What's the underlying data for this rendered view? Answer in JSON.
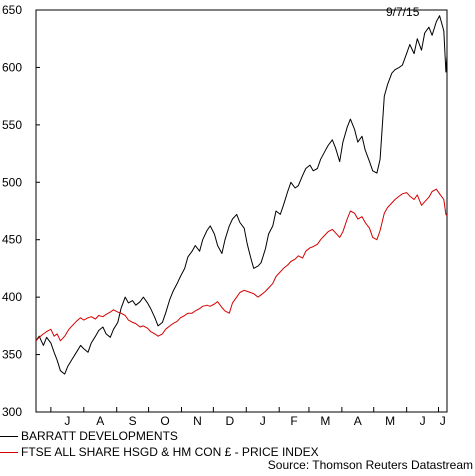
{
  "date_label": "9/7/15",
  "source": "Source: Thomson Reuters Datastream",
  "colors": {
    "series_1": "#000000",
    "series_2": "#d40000"
  },
  "chart_data": {
    "type": "line",
    "title": "",
    "xlabel": "",
    "ylabel": "",
    "ylim": [
      300,
      650
    ],
    "y_ticks": [
      300,
      350,
      400,
      450,
      500,
      550,
      600,
      650
    ],
    "x_ticks": [
      "J",
      "A",
      "S",
      "O",
      "N",
      "D",
      "J",
      "F",
      "M",
      "A",
      "M",
      "J",
      "J"
    ],
    "x_range": [
      "2014-06-17",
      "2015-07-09"
    ],
    "grid": false,
    "legend": "bottom",
    "series": [
      {
        "name": "BARRATT DEVELOPMENTS",
        "color": "#000000",
        "points": [
          [
            "2014-06-17",
            362
          ],
          [
            "2014-06-20",
            366
          ],
          [
            "2014-06-24",
            358
          ],
          [
            "2014-06-27",
            365
          ],
          [
            "2014-07-01",
            360
          ],
          [
            "2014-07-04",
            352
          ],
          [
            "2014-07-07",
            345
          ],
          [
            "2014-07-10",
            336
          ],
          [
            "2014-07-14",
            333
          ],
          [
            "2014-07-17",
            340
          ],
          [
            "2014-07-21",
            346
          ],
          [
            "2014-07-25",
            352
          ],
          [
            "2014-07-29",
            358
          ],
          [
            "2014-08-01",
            355
          ],
          [
            "2014-08-05",
            352
          ],
          [
            "2014-08-08",
            360
          ],
          [
            "2014-08-12",
            366
          ],
          [
            "2014-08-15",
            371
          ],
          [
            "2014-08-19",
            374
          ],
          [
            "2014-08-22",
            368
          ],
          [
            "2014-08-26",
            365
          ],
          [
            "2014-08-29",
            372
          ],
          [
            "2014-09-02",
            378
          ],
          [
            "2014-09-05",
            390
          ],
          [
            "2014-09-09",
            400
          ],
          [
            "2014-09-12",
            395
          ],
          [
            "2014-09-16",
            397
          ],
          [
            "2014-09-19",
            393
          ],
          [
            "2014-09-23",
            396
          ],
          [
            "2014-09-26",
            400
          ],
          [
            "2014-09-30",
            395
          ],
          [
            "2014-10-03",
            390
          ],
          [
            "2014-10-07",
            382
          ],
          [
            "2014-10-10",
            375
          ],
          [
            "2014-10-14",
            378
          ],
          [
            "2014-10-17",
            386
          ],
          [
            "2014-10-21",
            398
          ],
          [
            "2014-10-24",
            405
          ],
          [
            "2014-10-28",
            412
          ],
          [
            "2014-10-31",
            418
          ],
          [
            "2014-11-04",
            425
          ],
          [
            "2014-11-07",
            435
          ],
          [
            "2014-11-11",
            440
          ],
          [
            "2014-11-14",
            445
          ],
          [
            "2014-11-18",
            440
          ],
          [
            "2014-11-21",
            450
          ],
          [
            "2014-11-25",
            458
          ],
          [
            "2014-11-28",
            462
          ],
          [
            "2014-12-02",
            455
          ],
          [
            "2014-12-05",
            445
          ],
          [
            "2014-12-09",
            438
          ],
          [
            "2014-12-12",
            450
          ],
          [
            "2014-12-16",
            462
          ],
          [
            "2014-12-19",
            468
          ],
          [
            "2014-12-23",
            472
          ],
          [
            "2014-12-26",
            465
          ],
          [
            "2014-12-30",
            460
          ],
          [
            "2015-01-02",
            446
          ],
          [
            "2015-01-05",
            435
          ],
          [
            "2015-01-08",
            425
          ],
          [
            "2015-01-12",
            427
          ],
          [
            "2015-01-15",
            430
          ],
          [
            "2015-01-19",
            442
          ],
          [
            "2015-01-22",
            455
          ],
          [
            "2015-01-26",
            462
          ],
          [
            "2015-01-29",
            475
          ],
          [
            "2015-02-02",
            472
          ],
          [
            "2015-02-05",
            480
          ],
          [
            "2015-02-09",
            492
          ],
          [
            "2015-02-12",
            500
          ],
          [
            "2015-02-16",
            495
          ],
          [
            "2015-02-19",
            497
          ],
          [
            "2015-02-23",
            506
          ],
          [
            "2015-02-26",
            512
          ],
          [
            "2015-03-02",
            515
          ],
          [
            "2015-03-05",
            510
          ],
          [
            "2015-03-09",
            512
          ],
          [
            "2015-03-12",
            520
          ],
          [
            "2015-03-16",
            527
          ],
          [
            "2015-03-19",
            532
          ],
          [
            "2015-03-23",
            537
          ],
          [
            "2015-03-26",
            530
          ],
          [
            "2015-03-30",
            518
          ],
          [
            "2015-04-02",
            535
          ],
          [
            "2015-04-06",
            548
          ],
          [
            "2015-04-09",
            555
          ],
          [
            "2015-04-13",
            546
          ],
          [
            "2015-04-16",
            535
          ],
          [
            "2015-04-20",
            540
          ],
          [
            "2015-04-23",
            528
          ],
          [
            "2015-04-27",
            518
          ],
          [
            "2015-04-30",
            510
          ],
          [
            "2015-05-04",
            508
          ],
          [
            "2015-05-07",
            520
          ],
          [
            "2015-05-11",
            575
          ],
          [
            "2015-05-14",
            585
          ],
          [
            "2015-05-18",
            595
          ],
          [
            "2015-05-21",
            598
          ],
          [
            "2015-05-25",
            600
          ],
          [
            "2015-05-28",
            602
          ],
          [
            "2015-06-01",
            612
          ],
          [
            "2015-06-04",
            620
          ],
          [
            "2015-06-08",
            612
          ],
          [
            "2015-06-11",
            625
          ],
          [
            "2015-06-15",
            615
          ],
          [
            "2015-06-18",
            630
          ],
          [
            "2015-06-22",
            635
          ],
          [
            "2015-06-25",
            628
          ],
          [
            "2015-06-29",
            640
          ],
          [
            "2015-07-02",
            645
          ],
          [
            "2015-07-06",
            632
          ],
          [
            "2015-07-08",
            596
          ],
          [
            "2015-07-09",
            610
          ]
        ]
      },
      {
        "name": "FTSE ALL SHARE HSGD & HM CON £ - PRICE INDEX",
        "color": "#d40000",
        "points": [
          [
            "2014-06-17",
            362
          ],
          [
            "2014-06-20",
            365
          ],
          [
            "2014-06-24",
            368
          ],
          [
            "2014-06-27",
            370
          ],
          [
            "2014-07-01",
            372
          ],
          [
            "2014-07-04",
            366
          ],
          [
            "2014-07-07",
            368
          ],
          [
            "2014-07-10",
            362
          ],
          [
            "2014-07-14",
            366
          ],
          [
            "2014-07-18",
            372
          ],
          [
            "2014-07-22",
            376
          ],
          [
            "2014-07-25",
            379
          ],
          [
            "2014-07-29",
            382
          ],
          [
            "2014-08-01",
            380
          ],
          [
            "2014-08-05",
            382
          ],
          [
            "2014-08-08",
            383
          ],
          [
            "2014-08-12",
            381
          ],
          [
            "2014-08-15",
            384
          ],
          [
            "2014-08-19",
            383
          ],
          [
            "2014-08-22",
            385
          ],
          [
            "2014-08-26",
            387
          ],
          [
            "2014-08-29",
            389
          ],
          [
            "2014-09-02",
            387
          ],
          [
            "2014-09-05",
            386
          ],
          [
            "2014-09-09",
            384
          ],
          [
            "2014-09-12",
            380
          ],
          [
            "2014-09-16",
            378
          ],
          [
            "2014-09-19",
            377
          ],
          [
            "2014-09-23",
            374
          ],
          [
            "2014-09-26",
            375
          ],
          [
            "2014-09-30",
            373
          ],
          [
            "2014-10-03",
            370
          ],
          [
            "2014-10-07",
            368
          ],
          [
            "2014-10-10",
            366
          ],
          [
            "2014-10-14",
            368
          ],
          [
            "2014-10-17",
            372
          ],
          [
            "2014-10-21",
            375
          ],
          [
            "2014-10-24",
            377
          ],
          [
            "2014-10-28",
            379
          ],
          [
            "2014-10-31",
            382
          ],
          [
            "2014-11-04",
            384
          ],
          [
            "2014-11-07",
            386
          ],
          [
            "2014-11-11",
            386
          ],
          [
            "2014-11-14",
            388
          ],
          [
            "2014-11-18",
            390
          ],
          [
            "2014-11-21",
            392
          ],
          [
            "2014-11-25",
            393
          ],
          [
            "2014-11-28",
            392
          ],
          [
            "2014-12-02",
            394
          ],
          [
            "2014-12-05",
            396
          ],
          [
            "2014-12-09",
            391
          ],
          [
            "2014-12-12",
            388
          ],
          [
            "2014-12-16",
            386
          ],
          [
            "2014-12-19",
            395
          ],
          [
            "2014-12-23",
            400
          ],
          [
            "2014-12-26",
            404
          ],
          [
            "2014-12-30",
            406
          ],
          [
            "2015-01-02",
            405
          ],
          [
            "2015-01-05",
            404
          ],
          [
            "2015-01-08",
            403
          ],
          [
            "2015-01-12",
            400
          ],
          [
            "2015-01-15",
            402
          ],
          [
            "2015-01-19",
            405
          ],
          [
            "2015-01-22",
            408
          ],
          [
            "2015-01-26",
            412
          ],
          [
            "2015-01-29",
            418
          ],
          [
            "2015-02-02",
            422
          ],
          [
            "2015-02-05",
            425
          ],
          [
            "2015-02-09",
            428
          ],
          [
            "2015-02-12",
            431
          ],
          [
            "2015-02-16",
            433
          ],
          [
            "2015-02-19",
            436
          ],
          [
            "2015-02-23",
            434
          ],
          [
            "2015-02-26",
            440
          ],
          [
            "2015-03-02",
            443
          ],
          [
            "2015-03-05",
            444
          ],
          [
            "2015-03-09",
            446
          ],
          [
            "2015-03-12",
            450
          ],
          [
            "2015-03-16",
            454
          ],
          [
            "2015-03-19",
            457
          ],
          [
            "2015-03-23",
            459
          ],
          [
            "2015-03-26",
            456
          ],
          [
            "2015-03-30",
            452
          ],
          [
            "2015-04-02",
            457
          ],
          [
            "2015-04-06",
            468
          ],
          [
            "2015-04-09",
            475
          ],
          [
            "2015-04-13",
            473
          ],
          [
            "2015-04-16",
            468
          ],
          [
            "2015-04-20",
            470
          ],
          [
            "2015-04-23",
            465
          ],
          [
            "2015-04-27",
            460
          ],
          [
            "2015-04-30",
            452
          ],
          [
            "2015-05-04",
            450
          ],
          [
            "2015-05-07",
            458
          ],
          [
            "2015-05-11",
            473
          ],
          [
            "2015-05-14",
            478
          ],
          [
            "2015-05-18",
            482
          ],
          [
            "2015-05-21",
            485
          ],
          [
            "2015-05-25",
            488
          ],
          [
            "2015-05-28",
            490
          ],
          [
            "2015-06-01",
            491
          ],
          [
            "2015-06-04",
            488
          ],
          [
            "2015-06-08",
            485
          ],
          [
            "2015-06-11",
            489
          ],
          [
            "2015-06-15",
            480
          ],
          [
            "2015-06-18",
            483
          ],
          [
            "2015-06-22",
            487
          ],
          [
            "2015-06-25",
            492
          ],
          [
            "2015-06-29",
            494
          ],
          [
            "2015-07-02",
            490
          ],
          [
            "2015-07-06",
            485
          ],
          [
            "2015-07-08",
            472
          ],
          [
            "2015-07-09",
            471
          ]
        ]
      }
    ]
  }
}
